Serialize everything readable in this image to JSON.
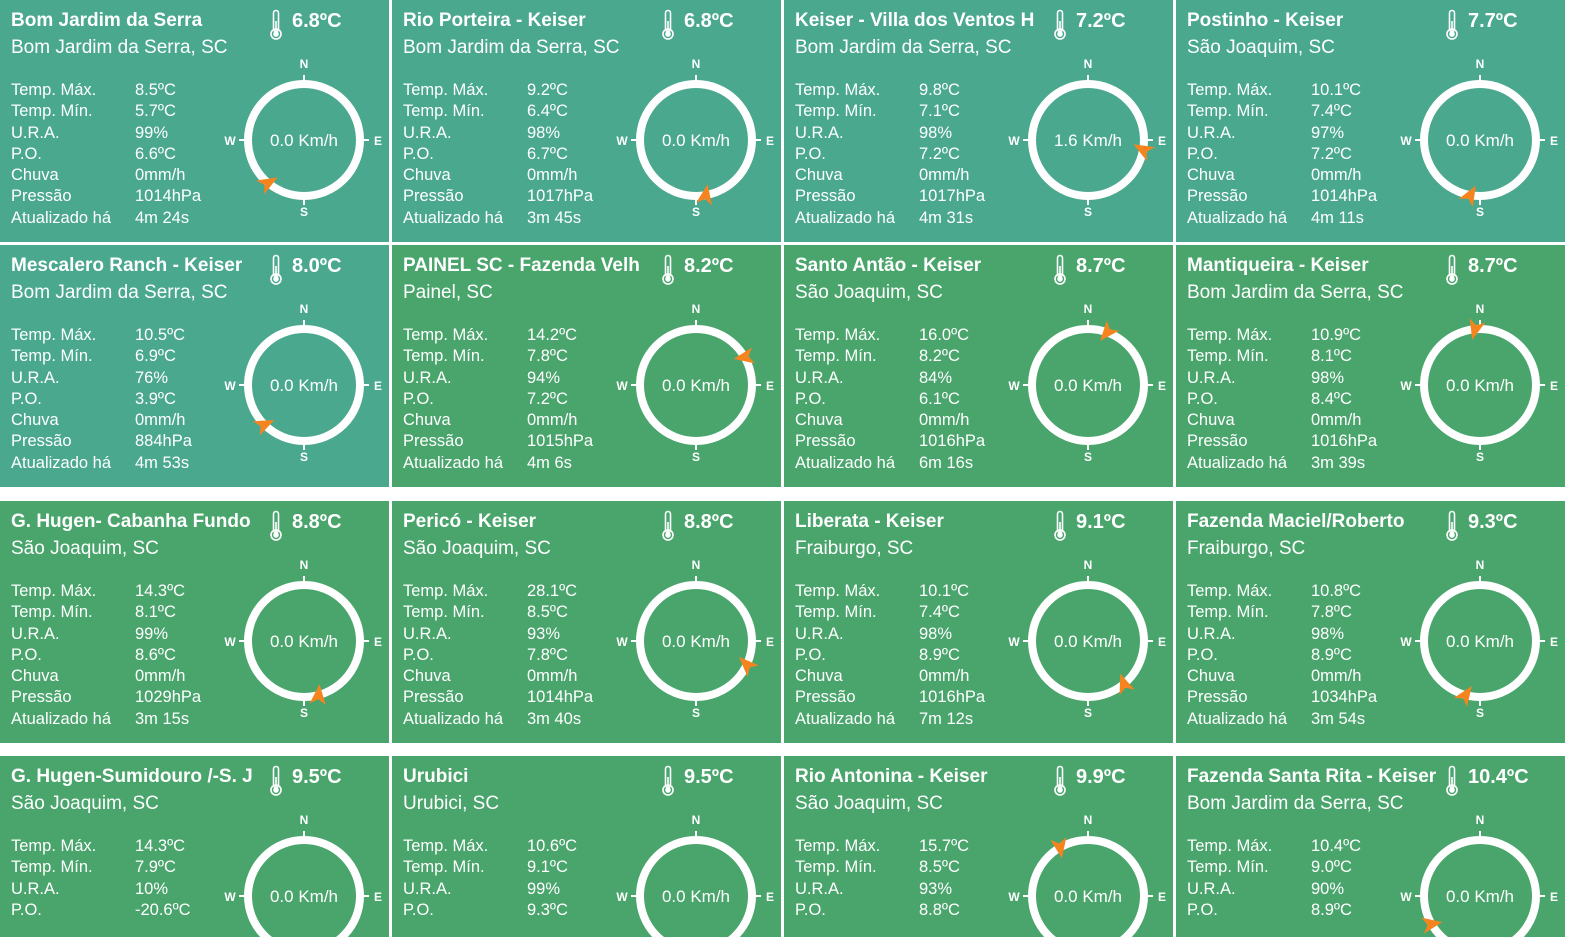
{
  "labels": {
    "tmax": "Temp. Máx.",
    "tmin": "Temp. Mín.",
    "ura": "U.R.A.",
    "po": "P.O.",
    "chuva": "Chuva",
    "pressao": "Pressão",
    "atualizado": "Atualizado há"
  },
  "compass_letters": {
    "n": "N",
    "s": "S",
    "e": "E",
    "w": "W"
  },
  "colors": {
    "teal": "#4aa88f",
    "green": "#4aa56c",
    "arrow": "#f5841f",
    "ring": "#ffffff"
  },
  "stations": [
    {
      "name": "Bom Jardim da Serra",
      "location": "Bom Jardim da Serra, SC",
      "temp": "6.8ºC",
      "tmax": "8.5ºC",
      "tmin": "5.7ºC",
      "ura": "99%",
      "po": "6.6ºC",
      "chuva": "0mm/h",
      "pressao": "1014hPa",
      "updated": "4m 24s",
      "wind": "0.0 Km/h",
      "wind_dir_deg": 220,
      "tone": "teal"
    },
    {
      "name": "Rio Porteira - Keiser",
      "location": "Bom Jardim da Serra, SC",
      "temp": "6.8ºC",
      "tmax": "9.2ºC",
      "tmin": "6.4ºC",
      "ura": "98%",
      "po": "6.7ºC",
      "chuva": "0mm/h",
      "pressao": "1017hPa",
      "updated": "3m 45s",
      "wind": "0.0 Km/h",
      "wind_dir_deg": 170,
      "tone": "teal"
    },
    {
      "name": "Keiser - Villa dos Ventos H",
      "location": "Bom Jardim da Serra, SC",
      "temp": "7.2ºC",
      "tmax": "9.8ºC",
      "tmin": "7.1ºC",
      "ura": "98%",
      "po": "7.2ºC",
      "chuva": "0mm/h",
      "pressao": "1017hPa",
      "updated": "4m 31s",
      "wind": "1.6 Km/h",
      "wind_dir_deg": 100,
      "tone": "teal"
    },
    {
      "name": "Postinho - Keiser",
      "location": "São Joaquim, SC",
      "temp": "7.7ºC",
      "tmax": "10.1ºC",
      "tmin": "7.4ºC",
      "ura": "97%",
      "po": "7.2ºC",
      "chuva": "0mm/h",
      "pressao": "1014hPa",
      "updated": "4m 11s",
      "wind": "0.0 Km/h",
      "wind_dir_deg": 190,
      "tone": "teal"
    },
    {
      "name": "Mescalero Ranch - Keiser",
      "location": "Bom Jardim da Serra, SC",
      "temp": "8.0ºC",
      "tmax": "10.5ºC",
      "tmin": "6.9ºC",
      "ura": "76%",
      "po": "3.9ºC",
      "chuva": "0mm/h",
      "pressao": "884hPa",
      "updated": "4m 53s",
      "wind": "0.0 Km/h",
      "wind_dir_deg": 225,
      "tone": "teal"
    },
    {
      "name": "PAINEL SC - Fazenda Velh",
      "location": "Painel, SC",
      "temp": "8.2ºC",
      "tmax": "14.2ºC",
      "tmin": "7.8ºC",
      "ura": "94%",
      "po": "7.2ºC",
      "chuva": "0mm/h",
      "pressao": "1015hPa",
      "updated": "4m 6s",
      "wind": "0.0 Km/h",
      "wind_dir_deg": 60,
      "tone": "green"
    },
    {
      "name": "Santo Antão - Keiser",
      "location": "São Joaquim, SC",
      "temp": "8.7ºC",
      "tmax": "16.0ºC",
      "tmin": "8.2ºC",
      "ura": "84%",
      "po": "6.1ºC",
      "chuva": "0mm/h",
      "pressao": "1016hPa",
      "updated": "6m 16s",
      "wind": "0.0 Km/h",
      "wind_dir_deg": 20,
      "tone": "green"
    },
    {
      "name": "Mantiqueira - Keiser",
      "location": "Bom Jardim da Serra, SC",
      "temp": "8.7ºC",
      "tmax": "10.9ºC",
      "tmin": "8.1ºC",
      "ura": "98%",
      "po": "8.4ºC",
      "chuva": "0mm/h",
      "pressao": "1016hPa",
      "updated": "3m 39s",
      "wind": "0.0 Km/h",
      "wind_dir_deg": 355,
      "tone": "green"
    },
    {
      "name": " G. Hugen- Cabanha Fundo",
      "location": "São Joaquim, SC",
      "temp": "8.8ºC",
      "tmax": "14.3ºC",
      "tmin": "8.1ºC",
      "ura": "99%",
      "po": "8.6ºC",
      "chuva": "0mm/h",
      "pressao": "1029hPa",
      "updated": "3m 15s",
      "wind": "0.0 Km/h",
      "wind_dir_deg": 165,
      "tone": "green"
    },
    {
      "name": "Pericó - Keiser",
      "location": "São Joaquim, SC",
      "temp": "8.8ºC",
      "tmax": "28.1ºC",
      "tmin": "8.5ºC",
      "ura": "93%",
      "po": "7.8ºC",
      "chuva": "0mm/h",
      "pressao": "1014hPa",
      "updated": "3m 40s",
      "wind": "0.0 Km/h",
      "wind_dir_deg": 115,
      "tone": "green"
    },
    {
      "name": "Liberata - Keiser",
      "location": "Fraiburgo, SC",
      "temp": "9.1ºC",
      "tmax": "10.1ºC",
      "tmin": "7.4ºC",
      "ura": "98%",
      "po": "8.9ºC",
      "chuva": "0mm/h",
      "pressao": "1016hPa",
      "updated": "7m 12s",
      "wind": "0.0 Km/h",
      "wind_dir_deg": 140,
      "tone": "green"
    },
    {
      "name": "Fazenda Maciel/Roberto",
      "location": "Fraiburgo, SC",
      "temp": "9.3ºC",
      "tmax": "10.8ºC",
      "tmin": "7.8ºC",
      "ura": "98%",
      "po": "8.9ºC",
      "chuva": "0mm/h",
      "pressao": "1034hPa",
      "updated": "3m 54s",
      "wind": "0.0 Km/h",
      "wind_dir_deg": 195,
      "tone": "green"
    },
    {
      "name": " G. Hugen-Sumidouro /-S. J",
      "location": "São Joaquim, SC",
      "temp": "9.5ºC",
      "tmax": "14.3ºC",
      "tmin": "7.9ºC",
      "ura": "10%",
      "po": "-20.6ºC",
      "chuva": "",
      "pressao": "",
      "updated": "",
      "wind": "0.0 Km/h",
      "wind_dir_deg": null,
      "tone": "green"
    },
    {
      "name": "Urubici",
      "location": "Urubici, SC",
      "temp": "9.5ºC",
      "tmax": "10.6ºC",
      "tmin": "9.1ºC",
      "ura": "99%",
      "po": "9.3ºC",
      "chuva": "",
      "pressao": "",
      "updated": "",
      "wind": "0.0 Km/h",
      "wind_dir_deg": null,
      "tone": "green"
    },
    {
      "name": "Rio Antonina - Keiser",
      "location": "São Joaquim, SC",
      "temp": "9.9ºC",
      "tmax": "15.7ºC",
      "tmin": "8.5ºC",
      "ura": "93%",
      "po": "8.8ºC",
      "chuva": "",
      "pressao": "",
      "updated": "",
      "wind": "0.0 Km/h",
      "wind_dir_deg": 330,
      "tone": "green"
    },
    {
      "name": "Fazenda Santa Rita - Keiser",
      "location": "Bom Jardim da Serra, SC",
      "temp": "10.4ºC",
      "tmax": "10.4ºC",
      "tmin": "9.0ºC",
      "ura": "90%",
      "po": "8.9ºC",
      "chuva": "",
      "pressao": "",
      "updated": "",
      "wind": "0.0 Km/h",
      "wind_dir_deg": 240,
      "tone": "green"
    }
  ]
}
